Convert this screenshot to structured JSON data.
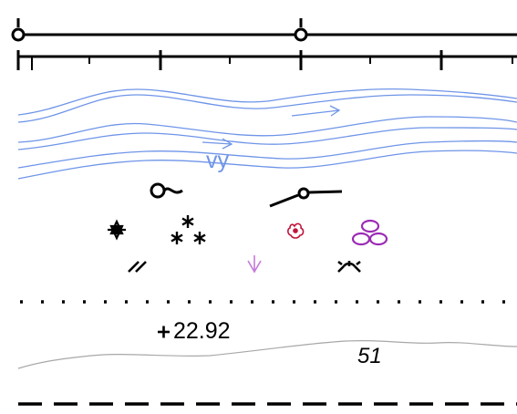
{
  "legend": {
    "stream_label": "vy",
    "spot_height": "22.92",
    "contour_value": "51"
  },
  "colors": {
    "water": "#6f95e8",
    "black": "#000000",
    "crimson": "#c0143c",
    "purple": "#9b2bb5",
    "violet": "#c67ad8",
    "contour": "#a8a8a8"
  },
  "symbols": [
    "road-scale-bar-with-nodes",
    "braided-stream-lines",
    "survey-ring-icon",
    "mast-icon",
    "rosette-icon",
    "triple-asterisk-icon",
    "flower-icon",
    "triple-oval-icon",
    "double-slash-icon",
    "down-arrow-icon",
    "crown-icon",
    "dotted-boundary-line",
    "spot-height-cross-icon",
    "contour-line",
    "dashed-boundary-line"
  ]
}
